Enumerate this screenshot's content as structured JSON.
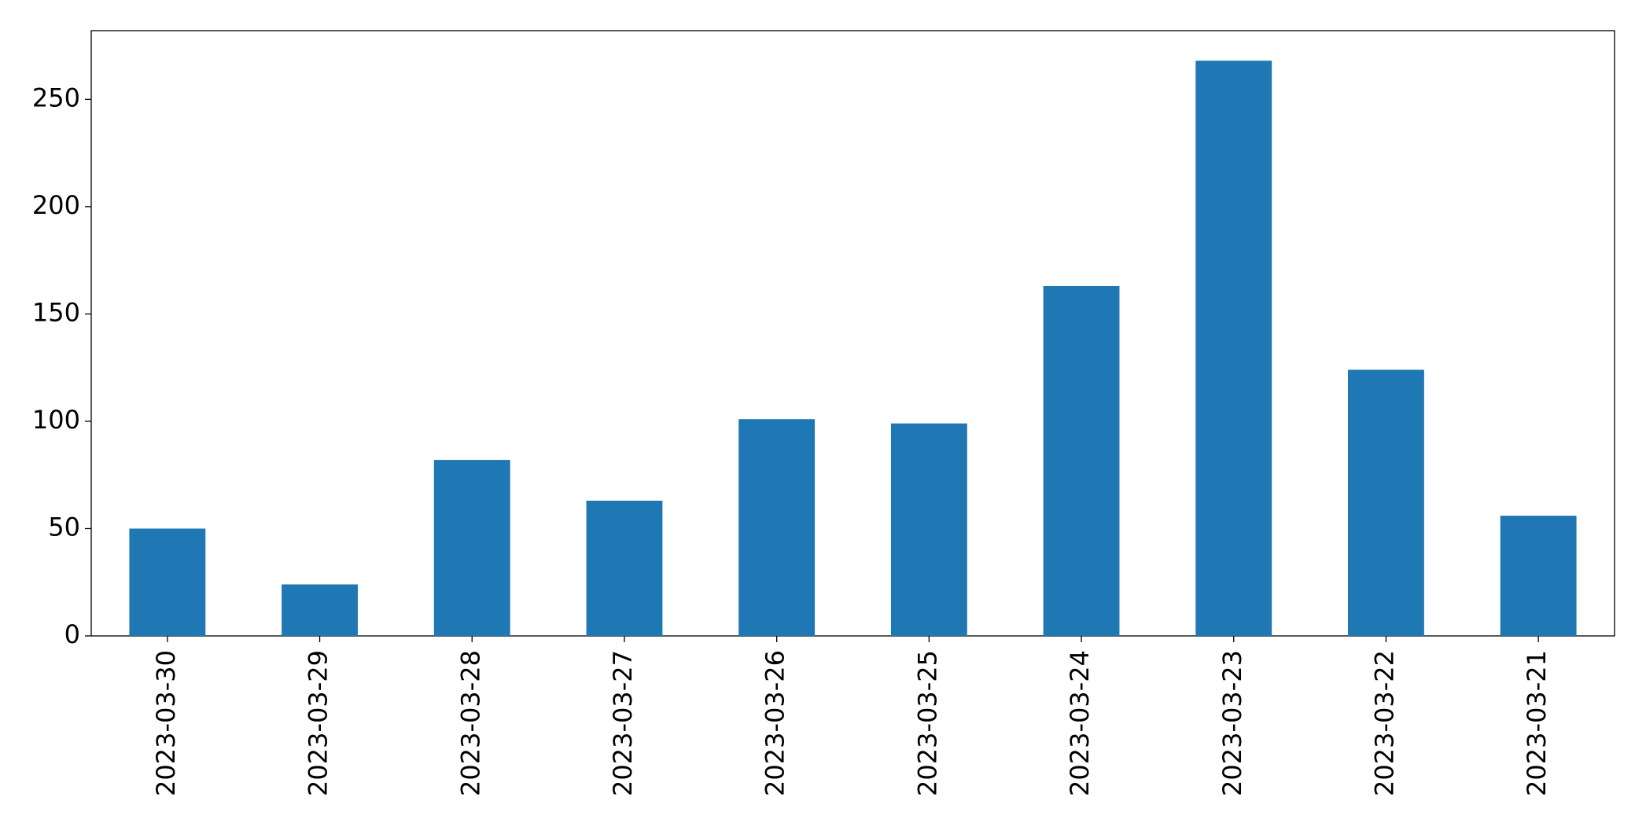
{
  "chart_data": {
    "type": "bar",
    "categories": [
      "2023-03-30",
      "2023-03-29",
      "2023-03-28",
      "2023-03-27",
      "2023-03-26",
      "2023-03-25",
      "2023-03-24",
      "2023-03-23",
      "2023-03-22",
      "2023-03-21"
    ],
    "values": [
      50,
      24,
      82,
      63,
      101,
      99,
      163,
      268,
      124,
      56
    ],
    "color": "#1f77b4",
    "ylim": [
      0,
      282
    ],
    "yticks": [
      0,
      50,
      100,
      150,
      200,
      250
    ],
    "grid": false
  }
}
